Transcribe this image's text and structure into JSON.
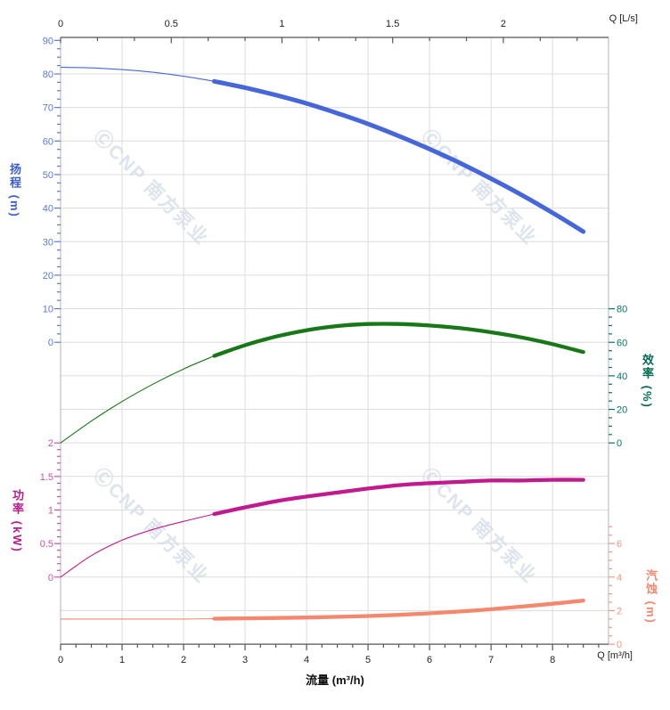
{
  "chart_data": {
    "type": "line",
    "title": "",
    "watermark": "ⒸCNP 南方泵业",
    "legend": "none",
    "grid": "on",
    "x_axis_bottom": {
      "name": "Q [m³/h]",
      "xlabel": "流量 (m³/h)",
      "tick_labels": [
        "0",
        "1",
        "2",
        "3",
        "4",
        "5",
        "6",
        "7",
        "8"
      ],
      "tick_values": [
        0,
        1,
        2,
        3,
        4,
        5,
        6,
        7,
        8
      ],
      "minor_step": 0.25,
      "range": [
        0,
        8.91
      ]
    },
    "x_axis_top": {
      "name": "Q [L/s]",
      "tick_labels": [
        "0",
        "0.5",
        "1",
        "1.5",
        "2"
      ],
      "tick_values": [
        0,
        0.5,
        1,
        1.5,
        2
      ],
      "minor_step": 0.1666667,
      "range": [
        0,
        2.475
      ]
    },
    "y_axes": {
      "head": {
        "title": "扬程 (m)",
        "unit": "m",
        "color": "#4667d9",
        "label_color": "#5b79de",
        "tick_values": [
          90,
          80,
          70,
          60,
          50,
          40,
          30,
          20,
          10,
          0
        ],
        "minor_step": 2.5,
        "range": [
          0,
          90
        ],
        "side": "left"
      },
      "efficiency": {
        "title": "效率 (%)",
        "unit": "%",
        "color": "#187818",
        "label_color": "#00786a",
        "tick_values": [
          80,
          60,
          40,
          20,
          0
        ],
        "minor_step": 5,
        "range": [
          0,
          80
        ],
        "side": "right"
      },
      "power": {
        "title": "功率 (kW)",
        "unit": "kW",
        "color": "#c01a8e",
        "label_color": "#cd51a6",
        "tick_values": [
          2,
          1.5,
          1,
          0.5,
          0
        ],
        "minor_step": 0.1,
        "range": [
          0,
          2
        ],
        "side": "left"
      },
      "npsh": {
        "title": "汽蚀 (m)",
        "unit": "m",
        "color": "#f4886f",
        "label_color": "#f79683",
        "tick_values": [
          6,
          4,
          2,
          0
        ],
        "minor_step": 0.5,
        "range": [
          0,
          7
        ],
        "side": "right"
      }
    },
    "q_m3h": [
      0,
      0.5,
      1,
      1.5,
      2,
      2.5,
      3,
      3.5,
      4,
      4.5,
      5,
      5.5,
      6,
      6.5,
      7,
      7.5,
      8,
      8.5
    ],
    "duty_range_from_q": 2.5,
    "series": [
      {
        "name": "head",
        "axis": "head",
        "values": [
          82,
          81.8,
          81.3,
          80.5,
          79.3,
          77.8,
          75.9,
          73.7,
          71.2,
          68.3,
          65.1,
          61.5,
          57.6,
          53.4,
          48.8,
          43.9,
          38.6,
          33.0
        ]
      },
      {
        "name": "efficiency",
        "axis": "efficiency",
        "values": [
          0,
          13,
          24.7,
          35,
          44.1,
          51.9,
          58.3,
          63.4,
          67.2,
          69.7,
          70.9,
          70.9,
          70,
          68.4,
          66,
          62.9,
          58.9,
          54.2
        ]
      },
      {
        "name": "power",
        "axis": "power",
        "values": [
          0,
          0.32,
          0.55,
          0.71,
          0.83,
          0.94,
          1.04,
          1.13,
          1.2,
          1.26,
          1.32,
          1.37,
          1.4,
          1.42,
          1.44,
          1.44,
          1.45,
          1.45
        ]
      },
      {
        "name": "npsh",
        "axis": "npsh",
        "values": [
          1.5,
          1.5,
          1.5,
          1.5,
          1.5,
          1.52,
          1.54,
          1.56,
          1.59,
          1.63,
          1.68,
          1.75,
          1.84,
          1.95,
          2.08,
          2.24,
          2.41,
          2.6
        ]
      }
    ]
  }
}
